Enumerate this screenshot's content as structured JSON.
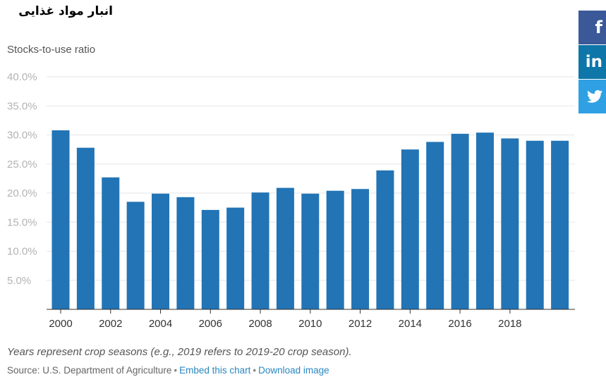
{
  "title": "انبار مواد غذایی",
  "colors": {
    "bar": "#2274b5",
    "grid": "#e6e6e6",
    "axis": "#333333",
    "tick_text": "#b3b3b3",
    "xtick_text": "#333333",
    "link": "#2a87c0"
  },
  "chart_data": {
    "type": "bar",
    "title": "",
    "xlabel": "",
    "ylabel": "Stocks-to-use ratio",
    "categories": [
      "2000",
      "2001",
      "2002",
      "2003",
      "2004",
      "2005",
      "2006",
      "2007",
      "2008",
      "2009",
      "2010",
      "2011",
      "2012",
      "2013",
      "2014",
      "2015",
      "2016",
      "2017",
      "2018",
      "2019",
      "2020"
    ],
    "values": [
      30.8,
      27.8,
      22.7,
      18.5,
      19.9,
      19.3,
      17.1,
      17.5,
      20.1,
      20.9,
      19.9,
      20.4,
      20.7,
      23.9,
      27.5,
      28.8,
      30.2,
      30.4,
      29.4,
      29.0,
      29.0
    ],
    "yticks": [
      "5.0%",
      "10.0%",
      "15.0%",
      "20.0%",
      "25.0%",
      "30.0%",
      "35.0%",
      "40.0%"
    ],
    "xticks": [
      "2000",
      "2002",
      "2004",
      "2006",
      "2008",
      "2010",
      "2012",
      "2014",
      "2016",
      "2018"
    ],
    "ylim": [
      0,
      40
    ],
    "grid": true,
    "legend": "none"
  },
  "footer": {
    "note": "Years represent crop seasons (e.g., 2019 refers to 2019-20 crop season).",
    "source": "Source: U.S. Department of Agriculture",
    "separator": "•",
    "embed_label": "Embed this chart",
    "download_label": "Download image"
  },
  "social": {
    "facebook": {
      "label": "f",
      "icon": "facebook-icon"
    },
    "linkedin": {
      "label": "in",
      "icon": "linkedin-icon"
    },
    "twitter": {
      "label": "🐦",
      "icon": "twitter-icon"
    }
  }
}
